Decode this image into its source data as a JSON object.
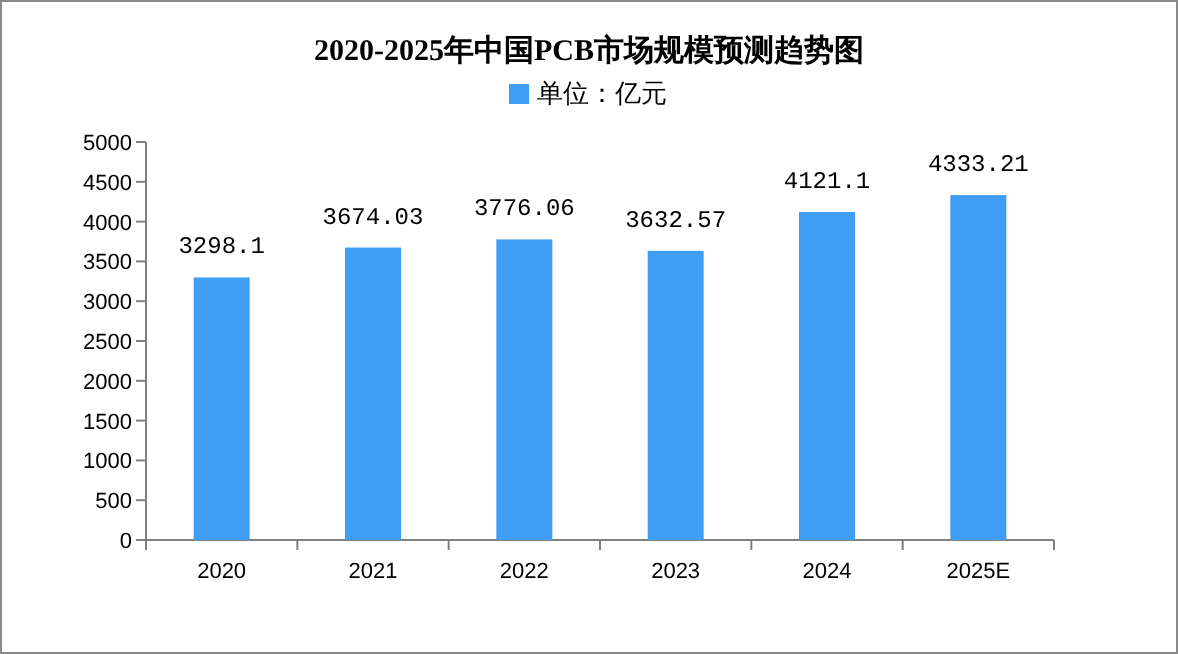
{
  "chart_data": {
    "type": "bar",
    "title": "2020-2025年中国PCB市场规模预测趋势图",
    "categories": [
      "2020",
      "2021",
      "2022",
      "2023",
      "2024",
      "2025E"
    ],
    "series": [
      {
        "name": "单位：亿元",
        "color": "#3f9ef4",
        "values": [
          3298.1,
          3674.03,
          3776.06,
          3632.57,
          4121.1,
          4333.21
        ]
      }
    ],
    "ylim": [
      0,
      5000
    ],
    "yticks": [
      0,
      500,
      1000,
      1500,
      2000,
      2500,
      3000,
      3500,
      4000,
      4500,
      5000
    ],
    "data_labels": true,
    "legend": "top",
    "grid": false
  }
}
